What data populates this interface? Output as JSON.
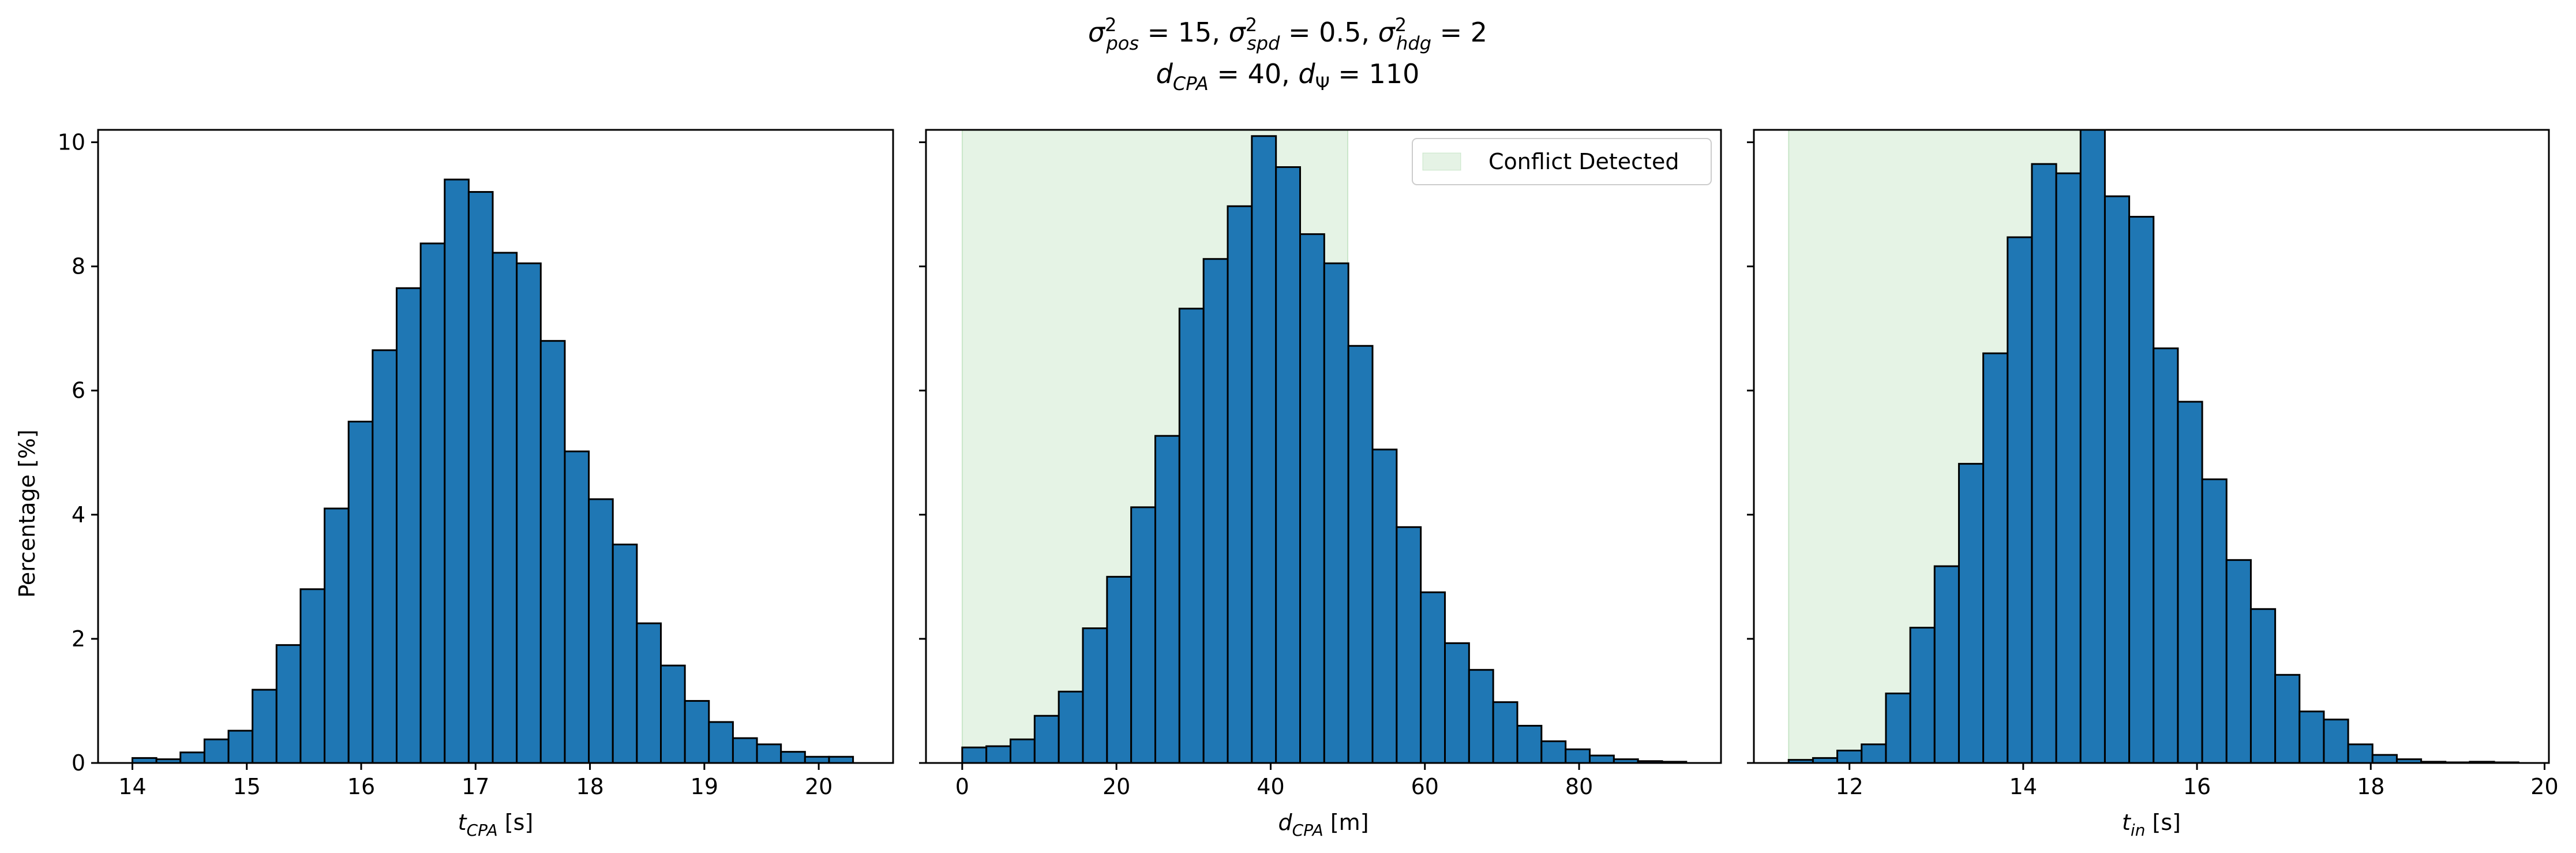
{
  "figure": {
    "title_line1": {
      "sym1": "σ",
      "sup1": "2",
      "sub1": "pos",
      "eq1": " = 15, ",
      "sym2": "σ",
      "sup2": "2",
      "sub2": "spd",
      "eq2": " = 0.5, ",
      "sym3": "σ",
      "sup3": "2",
      "sub3": "hdg",
      "eq3": " = 2"
    },
    "title_line2": {
      "sym1": "d",
      "sub1": "CPA",
      "eq1": " = 40, ",
      "sym2": "d",
      "sub2": "Ψ",
      "eq2": " = 110"
    }
  },
  "chart_data": [
    {
      "type": "bar",
      "ylabel": "Percentage [%]",
      "xlabel": {
        "sym": "t",
        "sub": "CPA",
        "unit": " [s]"
      },
      "xlim": [
        13.7,
        20.65
      ],
      "ylim": [
        0,
        10.2
      ],
      "xticks": [
        {
          "v": 14,
          "label": "14"
        },
        {
          "v": 15,
          "label": "15"
        },
        {
          "v": 16,
          "label": "16"
        },
        {
          "v": 17,
          "label": "17"
        },
        {
          "v": 18,
          "label": "18"
        },
        {
          "v": 19,
          "label": "19"
        },
        {
          "v": 20,
          "label": "20"
        }
      ],
      "yticks": [
        {
          "v": 0,
          "label": "0"
        },
        {
          "v": 2,
          "label": "2"
        },
        {
          "v": 4,
          "label": "4"
        },
        {
          "v": 6,
          "label": "6"
        },
        {
          "v": 8,
          "label": "8"
        },
        {
          "v": 10,
          "label": "10"
        }
      ],
      "bin_start": 14.0,
      "bin_width": 0.21,
      "values": [
        0.08,
        0.06,
        0.17,
        0.38,
        0.52,
        1.18,
        1.9,
        2.8,
        4.1,
        5.5,
        6.65,
        7.65,
        8.37,
        9.4,
        9.2,
        8.22,
        8.05,
        6.8,
        5.02,
        4.25,
        3.52,
        2.25,
        1.57,
        1.0,
        0.66,
        0.4,
        0.3,
        0.18,
        0.1,
        0.1
      ],
      "bar_color": "#1f77b4",
      "edge_color": "#000000"
    },
    {
      "type": "bar",
      "xlabel": {
        "sym": "d",
        "sub": "CPA",
        "unit": " [m]"
      },
      "xlim": [
        -4.7,
        98.4
      ],
      "ylim": [
        0,
        10.2
      ],
      "xticks": [
        {
          "v": 0,
          "label": "0"
        },
        {
          "v": 20,
          "label": "20"
        },
        {
          "v": 40,
          "label": "40"
        },
        {
          "v": 60,
          "label": "60"
        },
        {
          "v": 80,
          "label": "80"
        }
      ],
      "bin_start": 0.0,
      "bin_width": 3.13,
      "values": [
        0.25,
        0.27,
        0.38,
        0.76,
        1.15,
        2.17,
        3.0,
        4.12,
        5.27,
        7.32,
        8.12,
        8.97,
        10.1,
        9.6,
        8.52,
        8.05,
        6.72,
        5.05,
        3.8,
        2.75,
        1.93,
        1.5,
        0.98,
        0.6,
        0.35,
        0.22,
        0.12,
        0.06,
        0.03,
        0.02
      ],
      "shade": {
        "from": 0,
        "to": 50,
        "color": "#2ca02c",
        "opacity": 0.12
      },
      "legend": {
        "label": "Conflict Detected",
        "position": "upper right"
      },
      "bar_color": "#1f77b4",
      "edge_color": "#000000"
    },
    {
      "type": "bar",
      "xlabel": {
        "sym": "t",
        "sub": "in",
        "unit": " [s]"
      },
      "xlim": [
        10.9,
        20.05
      ],
      "ylim": [
        0,
        10.2
      ],
      "xticks": [
        {
          "v": 12,
          "label": "12"
        },
        {
          "v": 14,
          "label": "14"
        },
        {
          "v": 16,
          "label": "16"
        },
        {
          "v": 18,
          "label": "18"
        },
        {
          "v": 20,
          "label": "20"
        }
      ],
      "bin_start": 11.3,
      "bin_width": 0.28,
      "values": [
        0.05,
        0.08,
        0.2,
        0.3,
        1.12,
        2.18,
        3.17,
        4.82,
        6.6,
        8.47,
        9.65,
        9.5,
        10.2,
        9.13,
        8.8,
        6.68,
        5.82,
        4.57,
        3.27,
        2.48,
        1.42,
        0.83,
        0.7,
        0.3,
        0.13,
        0.06,
        0.02,
        0.01,
        0.02,
        0.01
      ],
      "shade": {
        "from": 11.3,
        "to": 14.85,
        "color": "#2ca02c",
        "opacity": 0.12
      },
      "bar_color": "#1f77b4",
      "edge_color": "#000000"
    }
  ]
}
